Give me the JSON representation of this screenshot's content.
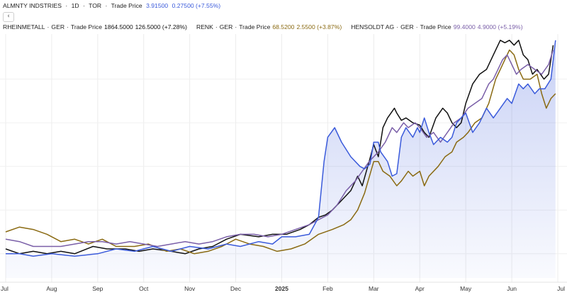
{
  "header": {
    "row1": {
      "name": "ALMNTY INDSTRIES",
      "interval": "1D",
      "exchange": "TOR",
      "kind": "Trade Price",
      "price": "3.91500",
      "change": "0.27500 (+7.55%)",
      "color": "#3b5bdb"
    },
    "collapse_glyph": "‹",
    "row2": [
      {
        "name": "RHEINMETALL",
        "exchange": "GER",
        "kind": "Trade Price",
        "price": "1864.5000",
        "change": "126.5000 (+7.28%)",
        "color": "#111111"
      },
      {
        "name": "RENK",
        "exchange": "GER",
        "kind": "Trade Price",
        "price": "68.5200",
        "change": "2.5500 (+3.87%)",
        "color": "#8a6a12"
      },
      {
        "name": "HENSOLDT AG",
        "exchange": "GER",
        "kind": "Trade Price",
        "price": "99.4000",
        "change": "4.9000 (+5.19%)",
        "color": "#7a5fa8"
      }
    ]
  },
  "chart_data": {
    "type": "line",
    "x_ticks": [
      "Jul",
      "Aug",
      "Sep",
      "Oct",
      "Nov",
      "Dec",
      "2025",
      "Feb",
      "Mar",
      "Apr",
      "May",
      "Jun",
      "Jul"
    ],
    "ylim": [
      0,
      100
    ],
    "grid": true,
    "series": [
      {
        "name": "ALMNTY INDSTRIES",
        "color": "#3b5bdb",
        "area": true,
        "values": [
          [
            0,
            10
          ],
          [
            0.3,
            10
          ],
          [
            0.6,
            9
          ],
          [
            1,
            10
          ],
          [
            1.5,
            9
          ],
          [
            2,
            10
          ],
          [
            2.4,
            12
          ],
          [
            2.8,
            11
          ],
          [
            3.2,
            13
          ],
          [
            3.6,
            11
          ],
          [
            4,
            13
          ],
          [
            4.4,
            12
          ],
          [
            4.8,
            14
          ],
          [
            5.1,
            13
          ],
          [
            5.5,
            15
          ],
          [
            5.8,
            14
          ],
          [
            6,
            17
          ],
          [
            6.3,
            17
          ],
          [
            6.6,
            18
          ],
          [
            6.8,
            25
          ],
          [
            6.92,
            48
          ],
          [
            7.0,
            58
          ],
          [
            7.15,
            62
          ],
          [
            7.3,
            56
          ],
          [
            7.5,
            50
          ],
          [
            7.7,
            46
          ],
          [
            7.8,
            45
          ],
          [
            7.92,
            47
          ],
          [
            8.0,
            56
          ],
          [
            8.1,
            56
          ],
          [
            8.15,
            52
          ],
          [
            8.3,
            48
          ],
          [
            8.4,
            42
          ],
          [
            8.5,
            43
          ],
          [
            8.6,
            58
          ],
          [
            8.7,
            62
          ],
          [
            8.85,
            58
          ],
          [
            8.95,
            62
          ],
          [
            9.0,
            60
          ],
          [
            9.1,
            66
          ],
          [
            9.2,
            60
          ],
          [
            9.3,
            55
          ],
          [
            9.45,
            58
          ],
          [
            9.6,
            56
          ],
          [
            9.7,
            58
          ],
          [
            9.8,
            64
          ],
          [
            9.9,
            66
          ],
          [
            10.0,
            68
          ],
          [
            10.15,
            60
          ],
          [
            10.3,
            64
          ],
          [
            10.45,
            70
          ],
          [
            10.6,
            66
          ],
          [
            10.75,
            70
          ],
          [
            10.9,
            74
          ],
          [
            11.0,
            72
          ],
          [
            11.15,
            80
          ],
          [
            11.25,
            78
          ],
          [
            11.35,
            80
          ],
          [
            11.5,
            76
          ],
          [
            11.6,
            78
          ],
          [
            11.72,
            78
          ],
          [
            11.85,
            82
          ],
          [
            11.95,
            98
          ]
        ]
      },
      {
        "name": "RHEINMETALL",
        "color": "#111111",
        "area": false,
        "values": [
          [
            0,
            12
          ],
          [
            0.3,
            10
          ],
          [
            0.6,
            11
          ],
          [
            0.9,
            10
          ],
          [
            1.2,
            11
          ],
          [
            1.5,
            10
          ],
          [
            1.9,
            13
          ],
          [
            2.2,
            12
          ],
          [
            2.6,
            12
          ],
          [
            2.9,
            11
          ],
          [
            3.2,
            12
          ],
          [
            3.6,
            11
          ],
          [
            3.9,
            10
          ],
          [
            4.2,
            12
          ],
          [
            4.5,
            13
          ],
          [
            4.8,
            16
          ],
          [
            5.1,
            18
          ],
          [
            5.5,
            17
          ],
          [
            5.8,
            18
          ],
          [
            6.1,
            18
          ],
          [
            6.4,
            20
          ],
          [
            6.6,
            22
          ],
          [
            6.8,
            25
          ],
          [
            6.95,
            26
          ],
          [
            7.1,
            28
          ],
          [
            7.3,
            32
          ],
          [
            7.5,
            36
          ],
          [
            7.65,
            42
          ],
          [
            7.75,
            38
          ],
          [
            7.9,
            48
          ],
          [
            8.0,
            55
          ],
          [
            8.1,
            50
          ],
          [
            8.2,
            62
          ],
          [
            8.3,
            66
          ],
          [
            8.45,
            70
          ],
          [
            8.5,
            68
          ],
          [
            8.6,
            65
          ],
          [
            8.7,
            66
          ],
          [
            8.85,
            64
          ],
          [
            9.0,
            63
          ],
          [
            9.1,
            60
          ],
          [
            9.2,
            58
          ],
          [
            9.35,
            66
          ],
          [
            9.5,
            70
          ],
          [
            9.6,
            68
          ],
          [
            9.7,
            64
          ],
          [
            9.8,
            62
          ],
          [
            9.9,
            64
          ],
          [
            10.0,
            72
          ],
          [
            10.15,
            80
          ],
          [
            10.3,
            84
          ],
          [
            10.45,
            86
          ],
          [
            10.6,
            92
          ],
          [
            10.75,
            98
          ],
          [
            10.85,
            97
          ],
          [
            10.95,
            98
          ],
          [
            11.05,
            96
          ],
          [
            11.15,
            98
          ],
          [
            11.25,
            92
          ],
          [
            11.35,
            90
          ],
          [
            11.45,
            84
          ],
          [
            11.55,
            86
          ],
          [
            11.7,
            82
          ],
          [
            11.8,
            84
          ],
          [
            11.9,
            96
          ]
        ]
      },
      {
        "name": "RENK",
        "color": "#8a6a12",
        "area": false,
        "values": [
          [
            0,
            19
          ],
          [
            0.3,
            21
          ],
          [
            0.6,
            20
          ],
          [
            0.9,
            18
          ],
          [
            1.2,
            15
          ],
          [
            1.5,
            16
          ],
          [
            1.8,
            14
          ],
          [
            2.1,
            16
          ],
          [
            2.4,
            13
          ],
          [
            2.8,
            13
          ],
          [
            3.1,
            14
          ],
          [
            3.5,
            11
          ],
          [
            3.8,
            12
          ],
          [
            4.1,
            10
          ],
          [
            4.4,
            11
          ],
          [
            4.7,
            13
          ],
          [
            5.0,
            16
          ],
          [
            5.3,
            14
          ],
          [
            5.6,
            13
          ],
          [
            5.9,
            11
          ],
          [
            6.2,
            12
          ],
          [
            6.5,
            14
          ],
          [
            6.8,
            18
          ],
          [
            7.1,
            20
          ],
          [
            7.35,
            22
          ],
          [
            7.5,
            24
          ],
          [
            7.65,
            28
          ],
          [
            7.8,
            35
          ],
          [
            8.0,
            48
          ],
          [
            8.1,
            48
          ],
          [
            8.2,
            44
          ],
          [
            8.35,
            42
          ],
          [
            8.5,
            38
          ],
          [
            8.6,
            40
          ],
          [
            8.75,
            44
          ],
          [
            8.85,
            42
          ],
          [
            9.0,
            44
          ],
          [
            9.1,
            38
          ],
          [
            9.2,
            42
          ],
          [
            9.4,
            46
          ],
          [
            9.55,
            50
          ],
          [
            9.7,
            52
          ],
          [
            9.8,
            56
          ],
          [
            9.95,
            58
          ],
          [
            10.05,
            60
          ],
          [
            10.2,
            64
          ],
          [
            10.35,
            66
          ],
          [
            10.5,
            72
          ],
          [
            10.65,
            82
          ],
          [
            10.75,
            86
          ],
          [
            10.85,
            90
          ],
          [
            10.95,
            94
          ],
          [
            11.05,
            92
          ],
          [
            11.15,
            86
          ],
          [
            11.25,
            82
          ],
          [
            11.4,
            82
          ],
          [
            11.55,
            84
          ],
          [
            11.65,
            76
          ],
          [
            11.75,
            70
          ],
          [
            11.85,
            74
          ],
          [
            11.95,
            76
          ]
        ]
      },
      {
        "name": "HENSOLDT AG",
        "color": "#7a5fa8",
        "area": false,
        "values": [
          [
            0,
            16
          ],
          [
            0.3,
            15
          ],
          [
            0.6,
            13
          ],
          [
            0.9,
            13
          ],
          [
            1.2,
            13
          ],
          [
            1.5,
            14
          ],
          [
            1.8,
            15
          ],
          [
            2.1,
            15
          ],
          [
            2.4,
            14
          ],
          [
            2.7,
            15
          ],
          [
            3.0,
            14
          ],
          [
            3.3,
            13
          ],
          [
            3.6,
            14
          ],
          [
            3.9,
            15
          ],
          [
            4.2,
            14
          ],
          [
            4.5,
            15
          ],
          [
            4.8,
            17
          ],
          [
            5.1,
            18
          ],
          [
            5.4,
            18
          ],
          [
            5.7,
            17
          ],
          [
            6.0,
            18
          ],
          [
            6.3,
            20
          ],
          [
            6.6,
            22
          ],
          [
            6.8,
            24
          ],
          [
            7.0,
            26
          ],
          [
            7.2,
            30
          ],
          [
            7.4,
            36
          ],
          [
            7.6,
            40
          ],
          [
            7.75,
            44
          ],
          [
            7.9,
            48
          ],
          [
            8.1,
            52
          ],
          [
            8.25,
            56
          ],
          [
            8.4,
            62
          ],
          [
            8.5,
            60
          ],
          [
            8.65,
            64
          ],
          [
            8.75,
            62
          ],
          [
            8.9,
            64
          ],
          [
            9.0,
            62
          ],
          [
            9.15,
            58
          ],
          [
            9.3,
            60
          ],
          [
            9.45,
            56
          ],
          [
            9.6,
            60
          ],
          [
            9.75,
            64
          ],
          [
            9.9,
            66
          ],
          [
            10.05,
            70
          ],
          [
            10.2,
            72
          ],
          [
            10.35,
            74
          ],
          [
            10.5,
            80
          ],
          [
            10.6,
            82
          ],
          [
            10.7,
            86
          ],
          [
            10.8,
            90
          ],
          [
            10.9,
            92
          ],
          [
            11.0,
            88
          ],
          [
            11.1,
            84
          ],
          [
            11.2,
            86
          ],
          [
            11.35,
            88
          ],
          [
            11.5,
            86
          ],
          [
            11.65,
            84
          ],
          [
            11.8,
            88
          ],
          [
            11.9,
            94
          ]
        ]
      }
    ]
  }
}
